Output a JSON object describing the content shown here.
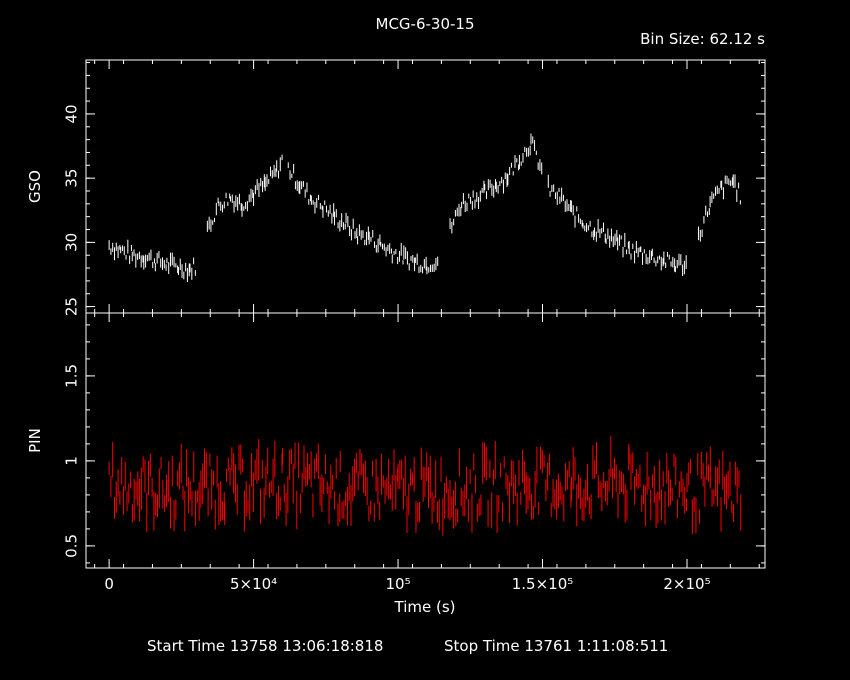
{
  "chart_data": {
    "type": "line",
    "title": "MCG-6-30-15",
    "bin_size_label": "Bin Size:  62.12  s",
    "footer": {
      "start": "Start Time 13758 13:06:18:818",
      "stop": "Stop Time 13761  1:11:08:511"
    },
    "xlabel": "Time (s)",
    "xlim": [
      -8000,
      227000
    ],
    "x_ticks": [
      {
        "value": 0,
        "label": "0"
      },
      {
        "value": 50000,
        "label": "5×10⁴"
      },
      {
        "value": 100000,
        "label": "10⁵"
      },
      {
        "value": 150000,
        "label": "1.5×10⁵"
      },
      {
        "value": 200000,
        "label": "2×10⁵"
      }
    ],
    "panels": [
      {
        "name": "gso-panel",
        "ylabel": "GSO",
        "ylim": [
          24.5,
          44.2
        ],
        "color": "#ffffff",
        "y_ticks": [
          {
            "value": 25,
            "label": "25"
          },
          {
            "value": 30,
            "label": "30"
          },
          {
            "value": 35,
            "label": "35"
          },
          {
            "value": 40,
            "label": "40"
          }
        ],
        "series": [
          {
            "x": [
              0,
              4000,
              8000,
              12000,
              16000,
              20000,
              24000,
              28000,
              30000
            ],
            "y": [
              29.8,
              29.4,
              29.0,
              28.9,
              28.6,
              28.3,
              28.1,
              27.9,
              28.2
            ]
          },
          {
            "x": [
              34000,
              38000,
              42000,
              46000,
              50000,
              54000,
              58000,
              60000
            ],
            "y": [
              31.0,
              33.0,
              33.5,
              33.0,
              33.8,
              34.5,
              35.5,
              36.5
            ]
          },
          {
            "x": [
              62000,
              66000,
              70000,
              74000,
              78000,
              82000,
              86000,
              90000,
              94000,
              98000,
              102000,
              106000,
              110000,
              114000
            ],
            "y": [
              35.8,
              34.5,
              33.4,
              32.8,
              32.0,
              31.4,
              30.6,
              30.4,
              29.8,
              29.3,
              28.8,
              28.5,
              28.3,
              28.6
            ]
          },
          {
            "x": [
              118000,
              122000,
              126000,
              130000,
              134000,
              138000,
              142000,
              146000,
              150000
            ],
            "y": [
              31.0,
              33.0,
              33.5,
              33.8,
              34.5,
              35.2,
              36.5,
              37.8,
              35.5
            ]
          },
          {
            "x": [
              152000,
              156000,
              160000,
              164000,
              168000,
              172000,
              176000,
              180000,
              184000,
              188000,
              192000,
              196000,
              200000
            ],
            "y": [
              34.2,
              33.5,
              32.4,
              31.6,
              31.0,
              30.6,
              30.0,
              29.4,
              29.2,
              28.9,
              28.6,
              28.3,
              28.3
            ]
          },
          {
            "x": [
              204000,
              208000,
              212000,
              216000,
              219000
            ],
            "y": [
              30.5,
              33.0,
              34.2,
              34.8,
              33.3
            ]
          }
        ]
      },
      {
        "name": "pin-panel",
        "ylabel": "PIN",
        "ylim": [
          0.37,
          1.87
        ],
        "color": "#ff0000",
        "y_ticks": [
          {
            "value": 0.5,
            "label": "0.5"
          },
          {
            "value": 1,
            "label": "1"
          },
          {
            "value": 1.5,
            "label": "1.5"
          }
        ],
        "series": [
          {
            "x": [
              0,
              20000,
              40000,
              60000,
              80000,
              100000,
              120000,
              140000,
              160000,
              180000,
              200000,
              219000
            ],
            "y": [
              0.86,
              0.83,
              0.85,
              0.88,
              0.84,
              0.82,
              0.83,
              0.86,
              0.85,
              0.87,
              0.83,
              0.8
            ]
          }
        ]
      }
    ]
  }
}
